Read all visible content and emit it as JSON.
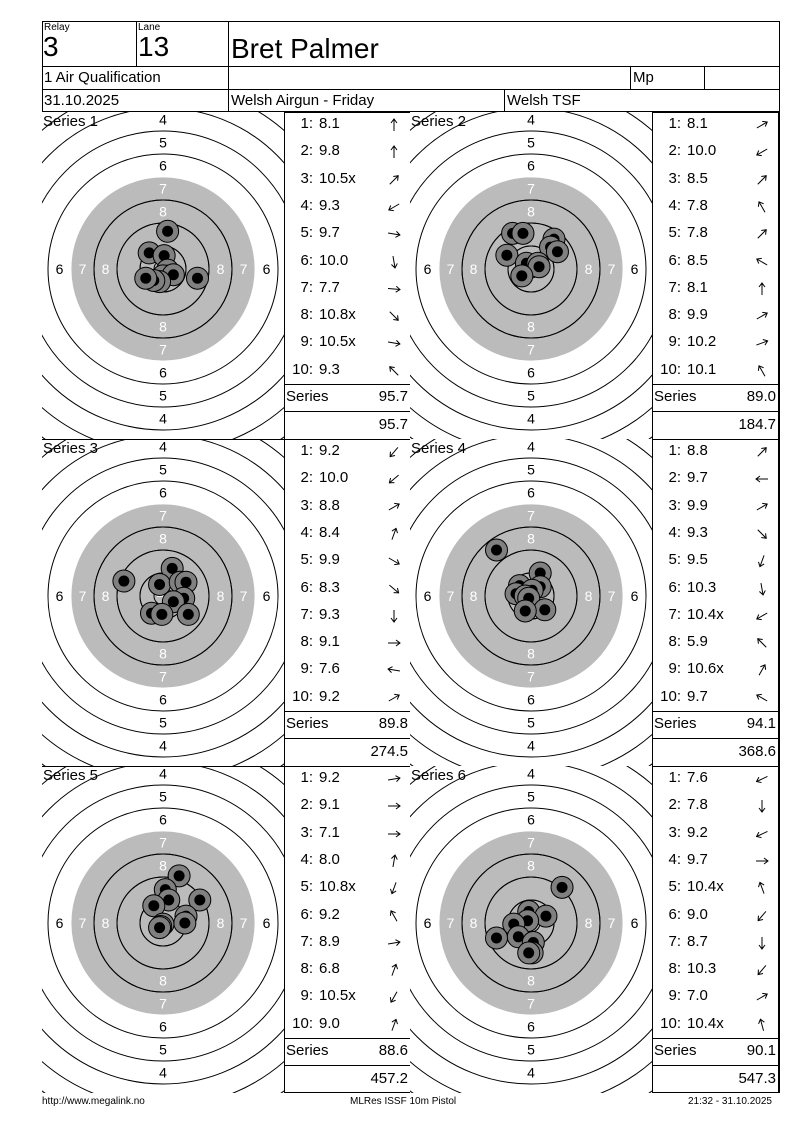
{
  "header": {
    "relay_label": "Relay",
    "relay": "3",
    "lane_label": "Lane",
    "lane": "13",
    "name": "Bret Palmer",
    "event": "1 Air Qualification",
    "mp_label": "Mp",
    "date": "31.10.2025",
    "competition": "Welsh Airgun - Friday",
    "club": "Welsh TSF"
  },
  "target_ring_labels": [
    "4",
    "5",
    "6",
    "7",
    "8"
  ],
  "series": [
    {
      "title": "Series 1",
      "total_label": "Series",
      "total": "95.7",
      "cumulative": "95.7",
      "shots": [
        {
          "n": "1:",
          "v": "8.1",
          "dir": 0
        },
        {
          "n": "2:",
          "v": "9.8",
          "dir": 0
        },
        {
          "n": "3:",
          "v": "10.5x",
          "dir": 45
        },
        {
          "n": "4:",
          "v": "9.3",
          "dir": 240
        },
        {
          "n": "5:",
          "v": "9.7",
          "dir": 100
        },
        {
          "n": "6:",
          "v": "10.0",
          "dir": 170
        },
        {
          "n": "7:",
          "v": "7.7",
          "dir": 95
        },
        {
          "n": "8:",
          "v": "10.8x",
          "dir": 135
        },
        {
          "n": "9:",
          "v": "10.5x",
          "dir": 100
        },
        {
          "n": "10:",
          "v": "9.3",
          "dir": 315
        }
      ],
      "holes": [
        [
          0.2,
          1.64
        ],
        [
          -0.6,
          0.7
        ],
        [
          0.05,
          0.58
        ],
        [
          0.2,
          -0.05
        ],
        [
          0.0,
          -0.3
        ],
        [
          0.45,
          -0.25
        ],
        [
          -0.15,
          -0.55
        ],
        [
          -0.4,
          -0.5
        ],
        [
          -0.75,
          -0.4
        ],
        [
          1.5,
          -0.4
        ]
      ]
    },
    {
      "title": "Series 2",
      "total_label": "Series",
      "total": "89.0",
      "cumulative": "184.7",
      "shots": [
        {
          "n": "1:",
          "v": "8.1",
          "dir": 60
        },
        {
          "n": "2:",
          "v": "10.0",
          "dir": 240
        },
        {
          "n": "3:",
          "v": "8.5",
          "dir": 45
        },
        {
          "n": "4:",
          "v": "7.8",
          "dir": 330
        },
        {
          "n": "5:",
          "v": "7.8",
          "dir": 45
        },
        {
          "n": "6:",
          "v": "8.5",
          "dir": 300
        },
        {
          "n": "7:",
          "v": "8.1",
          "dir": 0
        },
        {
          "n": "8:",
          "v": "9.9",
          "dir": 60
        },
        {
          "n": "9:",
          "v": "10.2",
          "dir": 70
        },
        {
          "n": "10:",
          "v": "10.1",
          "dir": 330
        }
      ],
      "holes": [
        [
          -0.8,
          1.55
        ],
        [
          -0.35,
          1.55
        ],
        [
          1.0,
          1.3
        ],
        [
          0.85,
          0.95
        ],
        [
          1.15,
          0.75
        ],
        [
          -1.05,
          0.6
        ],
        [
          -0.2,
          0.25
        ],
        [
          0.3,
          0.25
        ],
        [
          0.35,
          0.1
        ],
        [
          -0.4,
          -0.3
        ]
      ]
    },
    {
      "title": "Series 3",
      "total_label": "Series",
      "total": "89.8",
      "cumulative": "274.5",
      "shots": [
        {
          "n": "1:",
          "v": "9.2",
          "dir": 220
        },
        {
          "n": "2:",
          "v": "10.0",
          "dir": 230
        },
        {
          "n": "3:",
          "v": "8.8",
          "dir": 60
        },
        {
          "n": "4:",
          "v": "8.4",
          "dir": 20
        },
        {
          "n": "5:",
          "v": "9.9",
          "dir": 120
        },
        {
          "n": "6:",
          "v": "8.3",
          "dir": 130
        },
        {
          "n": "7:",
          "v": "9.3",
          "dir": 180
        },
        {
          "n": "8:",
          "v": "9.1",
          "dir": 90
        },
        {
          "n": "9:",
          "v": "7.6",
          "dir": 280
        },
        {
          "n": "10:",
          "v": "9.2",
          "dir": 60
        }
      ],
      "holes": [
        [
          0.4,
          1.2
        ],
        [
          -1.7,
          0.65
        ],
        [
          -0.15,
          0.5
        ],
        [
          0.75,
          0.6
        ],
        [
          1.0,
          0.6
        ],
        [
          0.9,
          -0.1
        ],
        [
          0.45,
          -0.25
        ],
        [
          -0.5,
          -0.75
        ],
        [
          -0.05,
          -0.8
        ],
        [
          1.1,
          -0.8
        ]
      ]
    },
    {
      "title": "Series 4",
      "total_label": "Series",
      "total": "94.1",
      "cumulative": "368.6",
      "shots": [
        {
          "n": "1:",
          "v": "8.8",
          "dir": 45
        },
        {
          "n": "2:",
          "v": "9.7",
          "dir": 270
        },
        {
          "n": "3:",
          "v": "9.9",
          "dir": 60
        },
        {
          "n": "4:",
          "v": "9.3",
          "dir": 135
        },
        {
          "n": "5:",
          "v": "9.5",
          "dir": 200
        },
        {
          "n": "6:",
          "v": "10.3",
          "dir": 170
        },
        {
          "n": "7:",
          "v": "10.4x",
          "dir": 240
        },
        {
          "n": "8:",
          "v": "5.9",
          "dir": 315
        },
        {
          "n": "9:",
          "v": "10.6x",
          "dir": 30
        },
        {
          "n": "10:",
          "v": "9.7",
          "dir": 300
        }
      ],
      "holes": [
        [
          -1.5,
          2.0
        ],
        [
          0.4,
          1.0
        ],
        [
          -0.5,
          0.45
        ],
        [
          0.4,
          0.4
        ],
        [
          0.05,
          0.25
        ],
        [
          -0.65,
          0.1
        ],
        [
          -0.25,
          0.0
        ],
        [
          -0.1,
          -0.1
        ],
        [
          0.6,
          -0.6
        ],
        [
          -0.25,
          -0.65
        ]
      ]
    },
    {
      "title": "Series 5",
      "total_label": "Series",
      "total": "88.6",
      "cumulative": "457.2",
      "shots": [
        {
          "n": "1:",
          "v": "9.2",
          "dir": 80
        },
        {
          "n": "2:",
          "v": "9.1",
          "dir": 90
        },
        {
          "n": "3:",
          "v": "7.1",
          "dir": 90
        },
        {
          "n": "4:",
          "v": "8.0",
          "dir": 10
        },
        {
          "n": "5:",
          "v": "10.8x",
          "dir": 200
        },
        {
          "n": "6:",
          "v": "9.2",
          "dir": 330
        },
        {
          "n": "7:",
          "v": "8.9",
          "dir": 80
        },
        {
          "n": "8:",
          "v": "6.8",
          "dir": 20
        },
        {
          "n": "9:",
          "v": "10.5x",
          "dir": 210
        },
        {
          "n": "10:",
          "v": "9.0",
          "dir": 20
        }
      ],
      "holes": [
        [
          0.7,
          2.05
        ],
        [
          0.1,
          1.45
        ],
        [
          0.25,
          1.0
        ],
        [
          -0.4,
          0.75
        ],
        [
          1.6,
          1.0
        ],
        [
          1.0,
          0.3
        ],
        [
          0.95,
          0.0
        ],
        [
          0.0,
          -0.05
        ],
        [
          -0.1,
          -0.15
        ],
        [
          -0.15,
          -0.2
        ]
      ]
    },
    {
      "title": "Series 6",
      "total_label": "Series",
      "total": "90.1",
      "cumulative": "547.3",
      "shots": [
        {
          "n": "1:",
          "v": "7.6",
          "dir": 245
        },
        {
          "n": "2:",
          "v": "7.8",
          "dir": 180
        },
        {
          "n": "3:",
          "v": "9.2",
          "dir": 245
        },
        {
          "n": "4:",
          "v": "9.7",
          "dir": 90
        },
        {
          "n": "5:",
          "v": "10.4x",
          "dir": 340
        },
        {
          "n": "6:",
          "v": "9.0",
          "dir": 220
        },
        {
          "n": "7:",
          "v": "8.7",
          "dir": 180
        },
        {
          "n": "8:",
          "v": "10.3",
          "dir": 220
        },
        {
          "n": "9:",
          "v": "7.0",
          "dir": 60
        },
        {
          "n": "10:",
          "v": "10.4x",
          "dir": 345
        }
      ],
      "holes": [
        [
          1.35,
          1.55
        ],
        [
          -0.1,
          0.5
        ],
        [
          0.65,
          0.3
        ],
        [
          -0.15,
          0.1
        ],
        [
          -0.75,
          -0.05
        ],
        [
          -1.5,
          -0.65
        ],
        [
          -0.55,
          -0.6
        ],
        [
          0.1,
          -0.85
        ],
        [
          0.05,
          -1.3
        ],
        [
          -0.1,
          -1.3
        ]
      ]
    }
  ],
  "footer": {
    "left": "http://www.megalink.no",
    "center": "MLRes ISSF 10m Pistol",
    "right": "21:32 - 31.10.2025"
  }
}
